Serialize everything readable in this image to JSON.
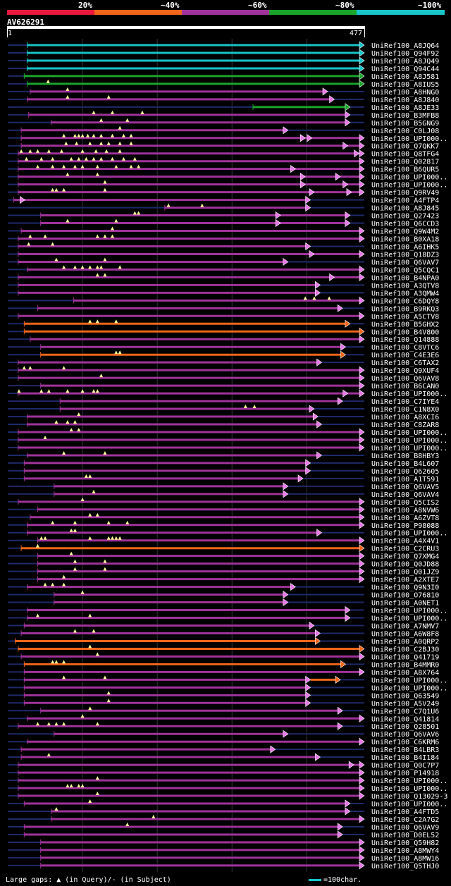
{
  "legend": {
    "segments": [
      {
        "label": "20%",
        "color": "#e8193c"
      },
      {
        "label": "~40%",
        "color": "#f0661a"
      },
      {
        "label": "~60%",
        "color": "#a0339a"
      },
      {
        "label": "~80%",
        "color": "#1aa52a"
      },
      {
        "label": "~100%",
        "color": "#17c5c8"
      }
    ]
  },
  "query": {
    "name": "AV626291",
    "start": "1",
    "end": "477",
    "length": 477
  },
  "colors": {
    "low": "#e8193c",
    "mid40": "#f0661a",
    "mid60": "#a0339a",
    "mid80": "#1aa52a",
    "high": "#17c5c8",
    "faint": "#1e2a6a",
    "arrow": "#e878e8",
    "gap": "#ffff99"
  },
  "hits": [
    {
      "label": "UniRef100_A8JQ64",
      "cls": "high",
      "start": 26,
      "end": 477,
      "gaps": []
    },
    {
      "label": "UniRef100_Q94F92",
      "cls": "high",
      "start": 26,
      "end": 477,
      "gaps": []
    },
    {
      "label": "UniRef100_A8JQ49",
      "cls": "high",
      "start": 26,
      "end": 477,
      "gaps": []
    },
    {
      "label": "UniRef100_Q94C44",
      "cls": "high",
      "start": 26,
      "end": 477,
      "gaps": []
    },
    {
      "label": "UniRef100_A8J581",
      "cls": "mid80",
      "start": 22,
      "end": 477,
      "gaps": []
    },
    {
      "label": "UniRef100_A8IUS5",
      "cls": "mid80",
      "start": 26,
      "end": 477,
      "gaps": [
        54
      ]
    },
    {
      "label": "UniRef100_A8HNG0",
      "cls": "mid60",
      "start": 30,
      "end": 428,
      "gaps": [
        80
      ]
    },
    {
      "label": "UniRef100_A8J840",
      "cls": "mid60",
      "start": 26,
      "end": 437,
      "gaps": [
        80,
        135
      ]
    },
    {
      "label": "UniRef100_A8JE33",
      "cls": "mid80",
      "start": 328,
      "end": 458,
      "gaps": []
    },
    {
      "label": "UniRef100_B3MFB8",
      "cls": "mid60",
      "start": 28,
      "end": 458,
      "gaps": [
        115,
        140,
        180
      ]
    },
    {
      "label": "UniRef100_B5GNG9",
      "cls": "mid60",
      "start": 58,
      "end": 458,
      "gaps": [
        125,
        160
      ]
    },
    {
      "label": "UniRef100_C0LJ08",
      "cls": "mid60",
      "start": 18,
      "end": 375,
      "gaps": [
        150
      ]
    },
    {
      "label": "UniRef100_UPI000..",
      "cls": "mid60",
      "start": 18,
      "end": 477,
      "gaps": [
        75,
        90,
        95,
        100,
        107,
        115,
        125,
        140,
        155,
        165
      ],
      "extra": [
        398,
        407
      ]
    },
    {
      "label": "UniRef100_Q7QKK7",
      "cls": "mid60",
      "start": 18,
      "end": 477,
      "gaps": [
        78,
        92,
        110,
        125,
        135,
        150,
        165
      ],
      "extra": [
        455
      ]
    },
    {
      "label": "UniRef100_Q8TFG4",
      "cls": "mid60",
      "start": 14,
      "end": 477,
      "gaps": [
        18,
        30,
        40,
        55,
        72,
        100,
        118,
        132,
        150
      ],
      "extra": [
        470
      ]
    },
    {
      "label": "UniRef100_Q02817",
      "cls": "mid60",
      "start": 14,
      "end": 477,
      "gaps": [
        25,
        45,
        60,
        85,
        95,
        105,
        115,
        125,
        140,
        155,
        170
      ]
    },
    {
      "label": "UniRef100_B6QUR5",
      "cls": "mid60",
      "start": 14,
      "end": 477,
      "gaps": [
        40,
        60,
        75,
        90,
        100,
        120,
        145,
        165,
        175
      ],
      "extra": [
        385
      ]
    },
    {
      "label": "UniRef100_UPI000..",
      "cls": "mid60",
      "start": 14,
      "end": 477,
      "gaps": [
        80,
        120
      ],
      "extra": [
        398,
        445
      ]
    },
    {
      "label": "UniRef100_UPI000..",
      "cls": "mid60",
      "start": 14,
      "end": 477,
      "gaps": [
        130
      ],
      "extra": [
        398,
        455
      ]
    },
    {
      "label": "UniRef100_Q9RV49",
      "cls": "mid60",
      "start": 14,
      "end": 477,
      "gaps": [
        60,
        65,
        75,
        130
      ],
      "extra": [
        410,
        460
      ]
    },
    {
      "label": "UniRef100_A4FTP4",
      "cls": "mid60",
      "start": 8,
      "end": 405,
      "gaps": [],
      "extra": [
        23
      ]
    },
    {
      "label": "UniRef100_A8J845",
      "cls": "mid60",
      "start": 210,
      "end": 405,
      "gaps": [
        215,
        260
      ]
    },
    {
      "label": "UniRef100_Q27423",
      "cls": "mid60",
      "start": 44,
      "end": 458,
      "gaps": [
        170,
        175
      ],
      "extra": [
        365
      ]
    },
    {
      "label": "UniRef100_Q6CCD3",
      "cls": "mid60",
      "start": 44,
      "end": 458,
      "gaps": [
        80,
        145
      ],
      "extra": [
        365
      ]
    },
    {
      "label": "UniRef100_Q9W4M2",
      "cls": "mid60",
      "start": 18,
      "end": 477,
      "gaps": [
        140
      ]
    },
    {
      "label": "UniRef100_B0XA18",
      "cls": "mid60",
      "start": 14,
      "end": 477,
      "gaps": [
        30,
        50,
        120,
        130,
        140
      ]
    },
    {
      "label": "UniRef100_A6IHK5",
      "cls": "mid60",
      "start": 14,
      "end": 405,
      "gaps": [
        28,
        60
      ]
    },
    {
      "label": "UniRef100_Q18DZ3",
      "cls": "mid60",
      "start": 14,
      "end": 477,
      "gaps": [],
      "extra": [
        410
      ]
    },
    {
      "label": "UniRef100_Q6VAV7",
      "cls": "mid60",
      "start": 14,
      "end": 375,
      "gaps": [
        65,
        130
      ]
    },
    {
      "label": "UniRef100_Q5CQC1",
      "cls": "mid60",
      "start": 26,
      "end": 477,
      "gaps": [
        75,
        90,
        100,
        110,
        120,
        125,
        150
      ]
    },
    {
      "label": "UniRef100_B4NPA0",
      "cls": "mid60",
      "start": 14,
      "end": 477,
      "gaps": [
        120,
        130
      ],
      "extra": [
        437
      ]
    },
    {
      "label": "UniRef100_A3QTV8",
      "cls": "mid60",
      "start": 14,
      "end": 418,
      "gaps": []
    },
    {
      "label": "UniRef100_A3QMW4",
      "cls": "mid60",
      "start": 14,
      "end": 418,
      "gaps": []
    },
    {
      "label": "UniRef100_C6DQY8",
      "cls": "mid60",
      "start": 88,
      "end": 477,
      "gaps": [
        398,
        410,
        430
      ]
    },
    {
      "label": "UniRef100_B9RKQ3",
      "cls": "mid60",
      "start": 40,
      "end": 448,
      "gaps": []
    },
    {
      "label": "UniRef100_A5CTV8",
      "cls": "mid60",
      "start": 14,
      "end": 477,
      "gaps": []
    },
    {
      "label": "UniRef100_B5GHX2",
      "cls": "mid40",
      "start": 22,
      "end": 458,
      "gaps": [
        110,
        120,
        145
      ]
    },
    {
      "label": "UniRef100_B4V800",
      "cls": "mid40",
      "start": 22,
      "end": 477,
      "gaps": []
    },
    {
      "label": "UniRef100_Q14888",
      "cls": "mid60",
      "start": 30,
      "end": 477,
      "gaps": []
    },
    {
      "label": "UniRef100_C8VTC6",
      "cls": "mid60",
      "start": 44,
      "end": 452,
      "gaps": []
    },
    {
      "label": "UniRef100_C4E3E6",
      "cls": "mid40",
      "start": 44,
      "end": 452,
      "gaps": [
        145,
        150
      ]
    },
    {
      "label": "UniRef100_C6TAX2",
      "cls": "mid60",
      "start": 14,
      "end": 420,
      "gaps": []
    },
    {
      "label": "UniRef100_Q9XUF4",
      "cls": "mid60",
      "start": 14,
      "end": 477,
      "gaps": [
        22,
        30,
        75
      ]
    },
    {
      "label": "UniRef100_Q6VAV8",
      "cls": "mid60",
      "start": 14,
      "end": 477,
      "gaps": [
        125
      ]
    },
    {
      "label": "UniRef100_B6CAN0",
      "cls": "mid60",
      "start": 44,
      "end": 477,
      "gaps": []
    },
    {
      "label": "UniRef100_UPI000..",
      "cls": "mid60",
      "start": 14,
      "end": 477,
      "gaps": [
        15,
        45,
        55,
        80,
        100,
        115,
        120
      ],
      "extra": [
        455
      ]
    },
    {
      "label": "UniRef100_C7IYE4",
      "cls": "mid60",
      "start": 70,
      "end": 448,
      "gaps": []
    },
    {
      "label": "UniRef100_C1N8X0",
      "cls": "mid60",
      "start": 70,
      "end": 410,
      "gaps": [
        318,
        330
      ]
    },
    {
      "label": "UniRef100_A8XCI6",
      "cls": "mid60",
      "start": 26,
      "end": 415,
      "gaps": [
        95
      ]
    },
    {
      "label": "UniRef100_C8ZAR8",
      "cls": "mid60",
      "start": 26,
      "end": 420,
      "gaps": [
        65,
        80,
        90
      ]
    },
    {
      "label": "UniRef100_UPI000..",
      "cls": "mid60",
      "start": 14,
      "end": 477,
      "gaps": [
        85,
        95
      ]
    },
    {
      "label": "UniRef100_UPI000..",
      "cls": "mid60",
      "start": 14,
      "end": 477,
      "gaps": [
        50
      ]
    },
    {
      "label": "UniRef100_UPI000..",
      "cls": "mid60",
      "start": 14,
      "end": 477,
      "gaps": []
    },
    {
      "label": "UniRef100_B8HBY3",
      "cls": "mid60",
      "start": 26,
      "end": 420,
      "gaps": [
        75,
        130
      ]
    },
    {
      "label": "UniRef100_B4L607",
      "cls": "mid60",
      "start": 22,
      "end": 405,
      "gaps": []
    },
    {
      "label": "UniRef100_Q62605",
      "cls": "mid60",
      "start": 22,
      "end": 405,
      "gaps": []
    },
    {
      "label": "UniRef100_A1T591",
      "cls": "mid60",
      "start": 22,
      "end": 395,
      "gaps": [
        105,
        110
      ]
    },
    {
      "label": "UniRef100_Q6VAV5",
      "cls": "mid60",
      "start": 62,
      "end": 375,
      "gaps": []
    },
    {
      "label": "UniRef100_Q6VAV4",
      "cls": "mid60",
      "start": 62,
      "end": 375,
      "gaps": [
        115
      ]
    },
    {
      "label": "UniRef100_Q5CIS2",
      "cls": "mid60",
      "start": 14,
      "end": 477,
      "gaps": [
        100
      ]
    },
    {
      "label": "UniRef100_A8NVW6",
      "cls": "mid60",
      "start": 40,
      "end": 477,
      "gaps": []
    },
    {
      "label": "UniRef100_A6ZVT8",
      "cls": "mid60",
      "start": 30,
      "end": 477,
      "gaps": [
        110,
        120
      ]
    },
    {
      "label": "UniRef100_P98088",
      "cls": "mid60",
      "start": 26,
      "end": 477,
      "gaps": [
        60,
        90,
        135,
        160
      ]
    },
    {
      "label": "UniRef100_UPI000..",
      "cls": "mid60",
      "start": 26,
      "end": 420,
      "gaps": [
        85,
        90
      ]
    },
    {
      "label": "UniRef100_A4X4V1",
      "cls": "mid60",
      "start": 40,
      "end": 477,
      "gaps": [
        45,
        50,
        110,
        135,
        140,
        145,
        150
      ]
    },
    {
      "label": "UniRef100_C2CRU3",
      "cls": "mid40",
      "start": 18,
      "end": 477,
      "gaps": [
        40
      ]
    },
    {
      "label": "UniRef100_Q7XMG4",
      "cls": "mid60",
      "start": 40,
      "end": 477,
      "gaps": [
        85
      ]
    },
    {
      "label": "UniRef100_Q0JD88",
      "cls": "mid60",
      "start": 40,
      "end": 477,
      "gaps": [
        90,
        130
      ]
    },
    {
      "label": "UniRef100_Q01JZ9",
      "cls": "mid60",
      "start": 40,
      "end": 477,
      "gaps": [
        90,
        130
      ]
    },
    {
      "label": "UniRef100_A2XTE7",
      "cls": "mid60",
      "start": 40,
      "end": 477,
      "gaps": [
        75
      ]
    },
    {
      "label": "UniRef100_Q9N3I0",
      "cls": "mid60",
      "start": 26,
      "end": 385,
      "gaps": [
        50,
        60,
        75
      ]
    },
    {
      "label": "UniRef100_O76810",
      "cls": "mid60",
      "start": 62,
      "end": 375,
      "gaps": [
        100
      ]
    },
    {
      "label": "UniRef100_A0NET1",
      "cls": "mid60",
      "start": 62,
      "end": 375,
      "gaps": []
    },
    {
      "label": "UniRef100_UPI000..",
      "cls": "mid60",
      "start": 26,
      "end": 458,
      "gaps": []
    },
    {
      "label": "UniRef100_UPI000..",
      "cls": "mid60",
      "start": 26,
      "end": 458,
      "gaps": [
        40,
        110
      ]
    },
    {
      "label": "UniRef100_A7NMV7",
      "cls": "mid60",
      "start": 22,
      "end": 410,
      "gaps": []
    },
    {
      "label": "UniRef100_A6W8F8",
      "cls": "mid60",
      "start": 18,
      "end": 418,
      "gaps": [
        90,
        115
      ]
    },
    {
      "label": "UniRef100_A0QRP2",
      "cls": "mid40",
      "start": 10,
      "end": 418,
      "gaps": []
    },
    {
      "label": "UniRef100_C2BJ30",
      "cls": "mid40",
      "start": 14,
      "end": 477,
      "gaps": [
        110
      ]
    },
    {
      "label": "UniRef100_Q41719",
      "cls": "mid60",
      "start": 18,
      "end": 477,
      "gaps": [
        120
      ]
    },
    {
      "label": "UniRef100_B4MMR0",
      "cls": "mid40",
      "start": 22,
      "end": 452,
      "gaps": [
        60,
        65,
        75
      ]
    },
    {
      "label": "UniRef100_A8X764",
      "cls": "mid60",
      "start": 22,
      "end": 477,
      "gaps": []
    },
    {
      "label": "UniRef100_UPI000..",
      "cls": "mid60",
      "start": 22,
      "end": 405,
      "gaps": [
        75,
        130
      ],
      "orange": [
        405,
        445
      ]
    },
    {
      "label": "UniRef100_UPI000..",
      "cls": "mid60",
      "start": 22,
      "end": 405,
      "gaps": []
    },
    {
      "label": "UniRef100_Q63549",
      "cls": "mid60",
      "start": 22,
      "end": 405,
      "gaps": [
        135
      ]
    },
    {
      "label": "UniRef100_A5V249",
      "cls": "mid60",
      "start": 22,
      "end": 405,
      "gaps": [
        135
      ]
    },
    {
      "label": "UniRef100_C7Q1U6",
      "cls": "mid60",
      "start": 44,
      "end": 448,
      "gaps": [
        110
      ]
    },
    {
      "label": "UniRef100_Q41814",
      "cls": "mid60",
      "start": 26,
      "end": 477,
      "gaps": [
        100
      ]
    },
    {
      "label": "UniRef100_Q28501",
      "cls": "mid60",
      "start": 14,
      "end": 448,
      "gaps": [
        40,
        55,
        65,
        75,
        120
      ]
    },
    {
      "label": "UniRef100_Q6VAV6",
      "cls": "mid60",
      "start": 62,
      "end": 375,
      "gaps": []
    },
    {
      "label": "UniRef100_C6KRM6",
      "cls": "mid60",
      "start": 26,
      "end": 477,
      "gaps": []
    },
    {
      "label": "UniRef100_B4LBR3",
      "cls": "mid60",
      "start": 18,
      "end": 358,
      "gaps": []
    },
    {
      "label": "UniRef100_B4I184",
      "cls": "mid60",
      "start": 18,
      "end": 418,
      "gaps": [
        55
      ]
    },
    {
      "label": "UniRef100_Q0C7P7",
      "cls": "mid60",
      "start": 14,
      "end": 477,
      "gaps": [],
      "extra": [
        463
      ]
    },
    {
      "label": "UniRef100_P14918",
      "cls": "mid60",
      "start": 14,
      "end": 477,
      "gaps": []
    },
    {
      "label": "UniRef100_UPI000..",
      "cls": "mid60",
      "start": 14,
      "end": 477,
      "gaps": [
        120
      ]
    },
    {
      "label": "UniRef100_UPI000..",
      "cls": "mid60",
      "start": 14,
      "end": 477,
      "gaps": [
        80,
        85,
        95,
        100
      ]
    },
    {
      "label": "UniRef100_Q13029-3",
      "cls": "mid60",
      "start": 14,
      "end": 477,
      "gaps": [
        120
      ]
    },
    {
      "label": "UniRef100_UPI000..",
      "cls": "mid60",
      "start": 22,
      "end": 458,
      "gaps": [
        110
      ]
    },
    {
      "label": "UniRef100_A4FTD5",
      "cls": "mid60",
      "start": 58,
      "end": 458,
      "gaps": [
        65
      ]
    },
    {
      "label": "UniRef100_C2A7G2",
      "cls": "mid60",
      "start": 58,
      "end": 477,
      "gaps": [
        195
      ]
    },
    {
      "label": "UniRef100_Q6VAV9",
      "cls": "mid60",
      "start": 22,
      "end": 448,
      "gaps": [
        160
      ]
    },
    {
      "label": "UniRef100_D0EL52",
      "cls": "mid60",
      "start": 22,
      "end": 448,
      "gaps": []
    },
    {
      "label": "UniRef100_Q59H82",
      "cls": "mid60",
      "start": 44,
      "end": 477,
      "gaps": []
    },
    {
      "label": "UniRef100_A8MWY4",
      "cls": "mid60",
      "start": 44,
      "end": 477,
      "gaps": []
    },
    {
      "label": "UniRef100_A8MW16",
      "cls": "mid60",
      "start": 44,
      "end": 477,
      "gaps": []
    },
    {
      "label": "UniRef100_Q5THJ0",
      "cls": "mid60",
      "start": 44,
      "end": 477,
      "gaps": []
    }
  ],
  "footer": {
    "gaps_text": "Large gaps: ▲ (in Query)/- (in Subject)",
    "scale_text": "=100char."
  }
}
